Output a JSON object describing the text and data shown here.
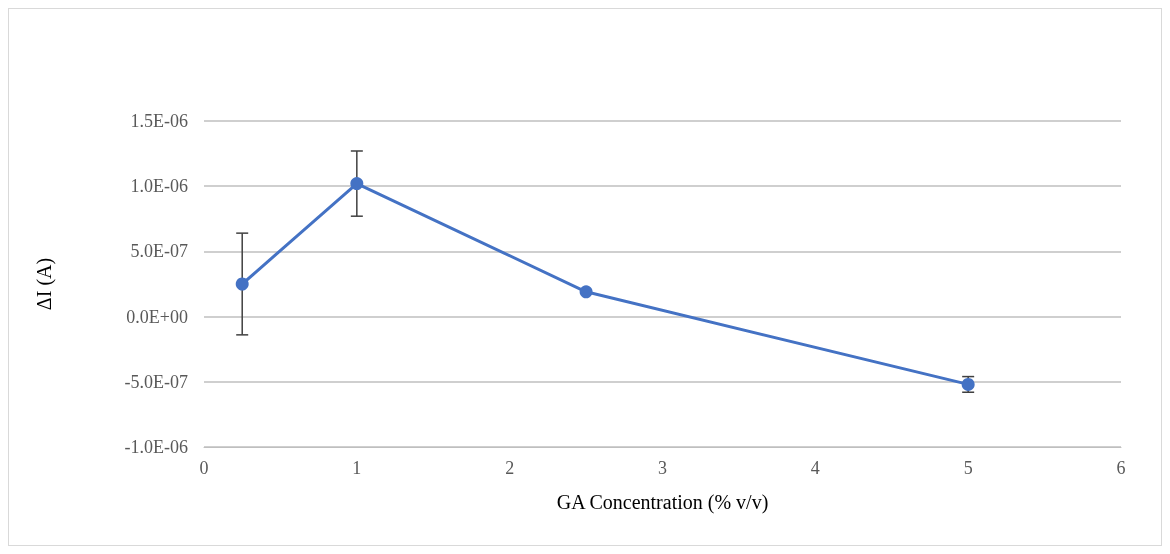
{
  "chart_data": {
    "type": "line",
    "xlabel": "GA Concentration (% v/v)",
    "ylabel": "ΔI (A)",
    "x": [
      0.25,
      1,
      2.5,
      5
    ],
    "series": [
      {
        "color": "#4472c4",
        "values": [
          2.5e-07,
          1.02e-06,
          1.9e-07,
          -5.2e-07
        ],
        "errors": [
          3.9e-07,
          2.5e-07,
          null,
          6e-08
        ]
      }
    ],
    "xlim": [
      0,
      6
    ],
    "xticks": [
      0,
      1,
      2,
      3,
      4,
      5,
      6
    ],
    "ylim": [
      -1e-06,
      1.5e-06
    ],
    "yticks": [
      {
        "value": -1e-06,
        "label": "-1.0E-06"
      },
      {
        "value": -5e-07,
        "label": "-5.0E-07"
      },
      {
        "value": 0,
        "label": "0.0E+00"
      },
      {
        "value": 5e-07,
        "label": "5.0E-07"
      },
      {
        "value": 1e-06,
        "label": "1.0E-06"
      },
      {
        "value": 1.5e-06,
        "label": "1.5E-06"
      }
    ],
    "grid": "y",
    "marker": "circle",
    "line_style": "solid"
  }
}
